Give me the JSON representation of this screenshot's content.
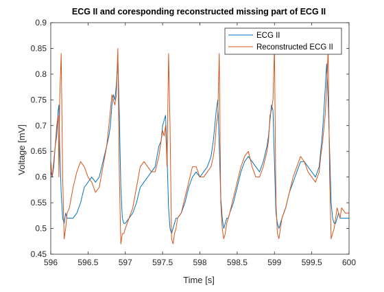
{
  "chart_data": {
    "type": "line",
    "title": "ECG II and coresponding reconstructed missing part of ECG II",
    "xlabel": "Time [s]",
    "ylabel": "Voltage [mV]",
    "xlim": [
      596,
      600
    ],
    "ylim": [
      0.45,
      0.9
    ],
    "x_ticks": [
      596,
      596.5,
      597,
      597.5,
      598,
      598.5,
      599,
      599.5,
      600
    ],
    "x_tick_labels": [
      "596",
      "596.5",
      "597",
      "597.5",
      "598",
      "598.5",
      "599",
      "599.5",
      "600"
    ],
    "y_ticks": [
      0.45,
      0.5,
      0.55,
      0.6,
      0.65,
      0.7,
      0.75,
      0.8,
      0.85,
      0.9
    ],
    "y_tick_labels": [
      "0.45",
      "0.5",
      "0.55",
      "0.6",
      "0.65",
      "0.7",
      "0.75",
      "0.8",
      "0.85",
      "0.9"
    ],
    "grid": false,
    "legend_position": "top-right",
    "series": [
      {
        "name": "ECG II",
        "color": "#0072BD",
        "x": [
          596.0,
          596.02,
          596.04,
          596.06,
          596.08,
          596.1,
          596.11,
          596.12,
          596.14,
          596.16,
          596.18,
          596.2,
          596.22,
          596.25,
          596.3,
          596.35,
          596.4,
          596.45,
          596.5,
          596.55,
          596.6,
          596.65,
          596.7,
          596.75,
          596.78,
          596.8,
          596.82,
          596.84,
          596.86,
          596.88,
          596.9,
          596.92,
          596.94,
          596.96,
          596.98,
          597.0,
          597.05,
          597.1,
          597.15,
          597.2,
          597.25,
          597.3,
          597.35,
          597.4,
          597.45,
          597.48,
          597.5,
          597.52,
          597.54,
          597.56,
          597.58,
          597.6,
          597.62,
          597.64,
          597.66,
          597.68,
          597.7,
          597.75,
          597.8,
          597.85,
          597.9,
          597.95,
          598.0,
          598.05,
          598.1,
          598.15,
          598.18,
          598.2,
          598.22,
          598.24,
          598.26,
          598.28,
          598.3,
          598.32,
          598.34,
          598.36,
          598.38,
          598.4,
          598.45,
          598.5,
          598.55,
          598.6,
          598.65,
          598.7,
          598.75,
          598.8,
          598.85,
          598.9,
          598.92,
          598.94,
          598.96,
          598.98,
          599.0,
          599.02,
          599.04,
          599.06,
          599.08,
          599.1,
          599.15,
          599.2,
          599.25,
          599.3,
          599.35,
          599.4,
          599.45,
          599.5,
          599.55,
          599.6,
          599.62,
          599.64,
          599.66,
          599.68,
          599.7,
          599.72,
          599.74,
          599.76,
          599.78,
          599.8,
          599.82,
          599.84,
          599.86,
          599.88,
          599.9,
          599.95,
          600.0
        ],
        "y": [
          0.61,
          0.6,
          0.62,
          0.66,
          0.68,
          0.73,
          0.74,
          0.66,
          0.57,
          0.52,
          0.51,
          0.53,
          0.52,
          0.52,
          0.52,
          0.53,
          0.55,
          0.58,
          0.59,
          0.6,
          0.59,
          0.6,
          0.63,
          0.66,
          0.68,
          0.7,
          0.74,
          0.76,
          0.75,
          0.78,
          0.83,
          0.72,
          0.58,
          0.52,
          0.51,
          0.51,
          0.52,
          0.53,
          0.55,
          0.58,
          0.59,
          0.6,
          0.61,
          0.62,
          0.66,
          0.67,
          0.7,
          0.71,
          0.72,
          0.64,
          0.54,
          0.5,
          0.49,
          0.5,
          0.51,
          0.52,
          0.52,
          0.53,
          0.55,
          0.58,
          0.6,
          0.61,
          0.6,
          0.61,
          0.62,
          0.64,
          0.67,
          0.7,
          0.73,
          0.75,
          0.66,
          0.56,
          0.52,
          0.5,
          0.51,
          0.52,
          0.52,
          0.53,
          0.55,
          0.58,
          0.61,
          0.63,
          0.64,
          0.63,
          0.62,
          0.61,
          0.63,
          0.66,
          0.68,
          0.71,
          0.74,
          0.73,
          0.63,
          0.53,
          0.51,
          0.5,
          0.51,
          0.52,
          0.54,
          0.57,
          0.59,
          0.61,
          0.63,
          0.63,
          0.62,
          0.61,
          0.6,
          0.62,
          0.65,
          0.68,
          0.72,
          0.77,
          0.82,
          0.75,
          0.65,
          0.55,
          0.52,
          0.51,
          0.51,
          0.52,
          0.53,
          0.52,
          0.52,
          0.52,
          0.52
        ]
      },
      {
        "name": "Reconstructed ECG II",
        "color": "#D95319",
        "x": [
          596.0,
          596.02,
          596.04,
          596.06,
          596.08,
          596.1,
          596.11,
          596.12,
          596.14,
          596.16,
          596.18,
          596.2,
          596.22,
          596.25,
          596.3,
          596.35,
          596.4,
          596.45,
          596.5,
          596.55,
          596.6,
          596.65,
          596.7,
          596.75,
          596.78,
          596.8,
          596.82,
          596.84,
          596.86,
          596.88,
          596.9,
          596.92,
          596.94,
          596.96,
          596.98,
          597.0,
          597.05,
          597.1,
          597.15,
          597.2,
          597.25,
          597.3,
          597.35,
          597.4,
          597.45,
          597.48,
          597.5,
          597.52,
          597.54,
          597.56,
          597.58,
          597.6,
          597.62,
          597.64,
          597.66,
          597.68,
          597.7,
          597.75,
          597.8,
          597.85,
          597.9,
          597.95,
          598.0,
          598.05,
          598.1,
          598.15,
          598.18,
          598.2,
          598.22,
          598.24,
          598.26,
          598.28,
          598.3,
          598.32,
          598.34,
          598.36,
          598.38,
          598.4,
          598.45,
          598.5,
          598.55,
          598.6,
          598.65,
          598.7,
          598.75,
          598.8,
          598.85,
          598.9,
          598.92,
          598.94,
          598.96,
          598.98,
          599.0,
          599.02,
          599.04,
          599.06,
          599.08,
          599.1,
          599.15,
          599.2,
          599.25,
          599.3,
          599.35,
          599.4,
          599.45,
          599.5,
          599.55,
          599.6,
          599.62,
          599.64,
          599.66,
          599.68,
          599.7,
          599.72,
          599.74,
          599.76,
          599.78,
          599.8,
          599.82,
          599.84,
          599.86,
          599.88,
          599.9,
          599.95,
          600.0
        ],
        "y": [
          0.63,
          0.6,
          0.63,
          0.66,
          0.7,
          0.72,
          0.6,
          0.75,
          0.84,
          0.6,
          0.48,
          0.5,
          0.53,
          0.54,
          0.58,
          0.61,
          0.63,
          0.62,
          0.6,
          0.59,
          0.57,
          0.58,
          0.62,
          0.66,
          0.7,
          0.73,
          0.76,
          0.75,
          0.74,
          0.76,
          0.85,
          0.6,
          0.47,
          0.49,
          0.49,
          0.5,
          0.52,
          0.54,
          0.58,
          0.62,
          0.63,
          0.62,
          0.61,
          0.61,
          0.64,
          0.67,
          0.69,
          0.68,
          0.7,
          0.62,
          0.84,
          0.7,
          0.48,
          0.47,
          0.49,
          0.5,
          0.52,
          0.53,
          0.56,
          0.59,
          0.62,
          0.62,
          0.6,
          0.6,
          0.61,
          0.62,
          0.64,
          0.66,
          0.7,
          0.72,
          0.84,
          0.55,
          0.5,
          0.48,
          0.49,
          0.51,
          0.52,
          0.53,
          0.56,
          0.59,
          0.62,
          0.64,
          0.65,
          0.62,
          0.6,
          0.6,
          0.62,
          0.65,
          0.67,
          0.72,
          0.73,
          0.75,
          0.85,
          0.55,
          0.49,
          0.48,
          0.5,
          0.52,
          0.54,
          0.57,
          0.6,
          0.62,
          0.64,
          0.63,
          0.61,
          0.6,
          0.59,
          0.61,
          0.64,
          0.66,
          0.69,
          0.72,
          0.77,
          0.85,
          0.6,
          0.48,
          0.49,
          0.5,
          0.52,
          0.54,
          0.53,
          0.52,
          0.54,
          0.53,
          0.53
        ]
      }
    ]
  }
}
